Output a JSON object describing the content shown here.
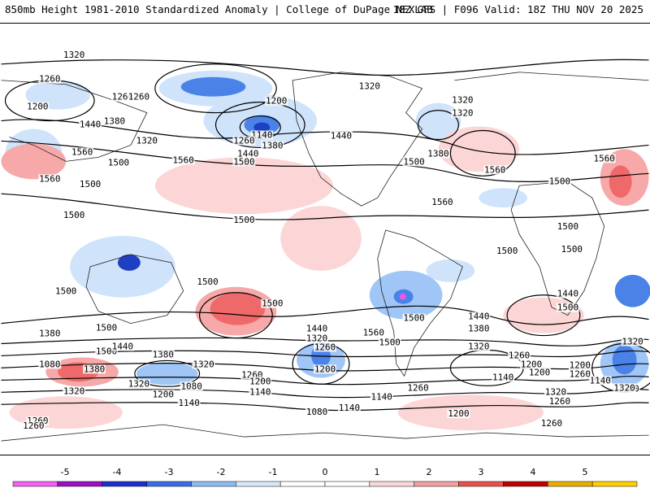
{
  "header": {
    "title": "850mb Height 1981-2010 Standardized Anomaly | College of DuPage NEXLAB",
    "run": "18Z GFS | F096 Valid: 18Z THU NOV 20 2025"
  },
  "colors": {
    "anom_neg": [
      "#cfe3fb",
      "#9fc6f6",
      "#4a82e8",
      "#1f3fc2",
      "#7a1fb0",
      "#e35be6"
    ],
    "anom_pos": [
      "#fcd6d6",
      "#f7a8a8",
      "#ee6a6a",
      "#d72a2a",
      "#b50000",
      "#f0a000"
    ],
    "colorbar_fill": [
      "#f560f5",
      "#9a10c4",
      "#1d2fd0",
      "#3a6de8",
      "#8cbcf4",
      "#d8e8fb",
      "#ffffff",
      "#ffffff",
      "#fbd8d8",
      "#f5a0a0",
      "#eb5050",
      "#c20000",
      "#e8b000",
      "#ffd000"
    ],
    "contour": "#000000"
  },
  "colorbar": {
    "ticks": [
      "-5",
      "-4",
      "-3",
      "-2",
      "-1",
      "0",
      "1",
      "2",
      "3",
      "4",
      "5"
    ]
  },
  "contour_labels": [
    "1320",
    "1260",
    "1260",
    "1200",
    "1260",
    "1200",
    "1140",
    "1440",
    "1380",
    "1320",
    "1260",
    "1380",
    "1320",
    "1320",
    "1380",
    "1320",
    "1560",
    "1440",
    "1500",
    "1500",
    "1440",
    "1560",
    "1560",
    "1500",
    "1500",
    "1500",
    "1560",
    "1500",
    "1560",
    "1500",
    "1500",
    "1500",
    "1500",
    "1500",
    "1500",
    "1500",
    "1500",
    "1380",
    "1440",
    "1380",
    "1320",
    "1260",
    "1200",
    "1140",
    "1080",
    "1440",
    "1320",
    "1260",
    "1200",
    "1140",
    "1080",
    "1560",
    "1500",
    "1500",
    "1440",
    "1380",
    "1320",
    "1260",
    "1200",
    "1140",
    "1140",
    "1200",
    "1260",
    "1200",
    "1200",
    "1140",
    "1260",
    "1320",
    "1260",
    "1320",
    "1380",
    "1260",
    "1320",
    "1320",
    "1200",
    "1140",
    "1080",
    "1260",
    "1260",
    "1380",
    "1320",
    "1500",
    "1440",
    "1500",
    "1560"
  ],
  "anomaly_regions": [
    {
      "name": "n-pacific-low",
      "value": -3
    },
    {
      "name": "gulf-alaska-low",
      "value": -4
    },
    {
      "name": "australia-low",
      "value": -4
    },
    {
      "name": "s-america-low",
      "value": -5
    },
    {
      "name": "n-pacific-high",
      "value": 1
    },
    {
      "name": "sw-pacific-high",
      "value": 3
    },
    {
      "name": "s-indian-high",
      "value": 3
    },
    {
      "name": "middle-east-high",
      "value": 2
    },
    {
      "name": "s-ocean-low-east",
      "value": -3
    },
    {
      "name": "s-ocean-low-mid",
      "value": -3
    }
  ]
}
